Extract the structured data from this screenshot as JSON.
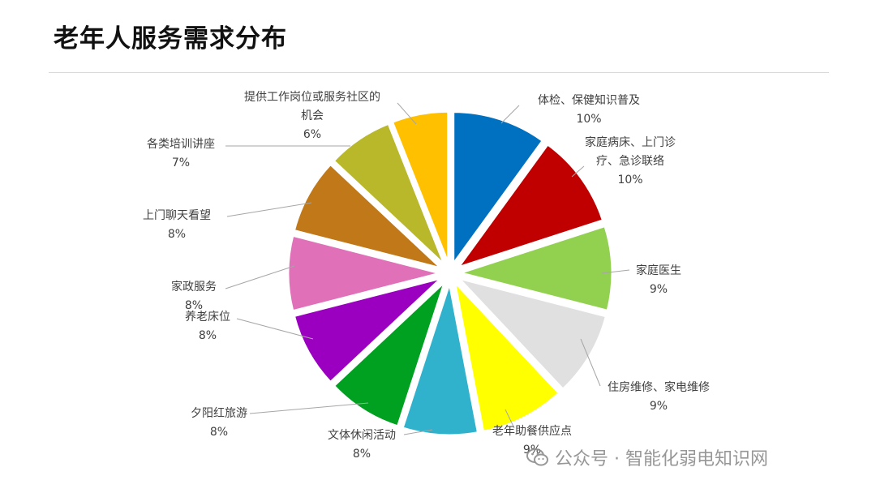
{
  "page": {
    "title": "老年人服务需求分布"
  },
  "watermark": {
    "text": "公众号 · 智能化弱电知识网",
    "icon": "wechat-icon"
  },
  "chart_data": {
    "type": "pie",
    "title": "老年人服务需求分布",
    "slices": [
      {
        "label_lines": [
          "体检、保健知识普及"
        ],
        "value_label": "10%",
        "value": 10,
        "color": "#0070C0"
      },
      {
        "label_lines": [
          "家庭病床、上门诊",
          "疗、急诊联络"
        ],
        "value_label": "10%",
        "value": 10,
        "color": "#C00000"
      },
      {
        "label_lines": [
          "家庭医生"
        ],
        "value_label": "9%",
        "value": 9,
        "color": "#92D050"
      },
      {
        "label_lines": [
          "住房维修、家电维修"
        ],
        "value_label": "9%",
        "value": 9,
        "color": "#E0E0E0"
      },
      {
        "label_lines": [
          "老年助餐供应点"
        ],
        "value_label": "9%",
        "value": 9,
        "color": "#FFFF00"
      },
      {
        "label_lines": [
          "文体休闲活动"
        ],
        "value_label": "8%",
        "value": 8,
        "color": "#31B2CC"
      },
      {
        "label_lines": [
          "夕阳红旅游"
        ],
        "value_label": "8%",
        "value": 8,
        "color": "#00A020"
      },
      {
        "label_lines": [
          "养老床位"
        ],
        "value_label": "8%",
        "value": 8,
        "color": "#9B00C0"
      },
      {
        "label_lines": [
          "家政服务"
        ],
        "value_label": "8%",
        "value": 8,
        "color": "#E070B8"
      },
      {
        "label_lines": [
          "上门聊天看望"
        ],
        "value_label": "8%",
        "value": 8,
        "color": "#C07818"
      },
      {
        "label_lines": [
          "各类培训讲座"
        ],
        "value_label": "7%",
        "value": 7,
        "color": "#B8B82A"
      },
      {
        "label_lines": [
          "提供工作岗位或服务社区的",
          "机会"
        ],
        "value_label": "6%",
        "value": 6,
        "color": "#FFC000"
      }
    ]
  }
}
